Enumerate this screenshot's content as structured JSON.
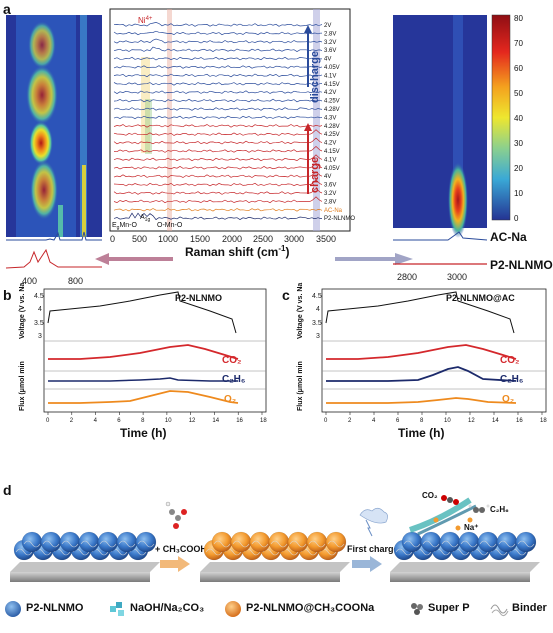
{
  "panel_a": {
    "label": "a",
    "center": {
      "xlabel": "Raman shift (cm",
      "xlabel_sup": "-1",
      "xlabel_tail": ")",
      "xticks": [
        "0",
        "500",
        "1000",
        "1500",
        "2000",
        "2500",
        "3000",
        "3500"
      ],
      "ni_label": "Ni",
      "ni_sup": "4+",
      "trace_labels": [
        "2V",
        "2.8V",
        "3.2V",
        "3.6V",
        "4V",
        "4.05V",
        "4.1V",
        "4.15V",
        "4.2V",
        "4.25V",
        "4.28V",
        "4.3V",
        "4.28V",
        "4.25V",
        "4.2V",
        "4.15V",
        "4.1V",
        "4.05V",
        "4V",
        "3.6V",
        "3.2V",
        "2.8V",
        "AC-Na",
        "P2-NLNMO"
      ],
      "bottom_ann": [
        "E",
        "g",
        "Mn-O",
        "A",
        "1g",
        "O-Mn-O"
      ],
      "discharge": "discharge",
      "charge": "charge",
      "colors": {
        "discharge": "#2a4b9b",
        "charge": "#c6262a",
        "acna": "#e07b1a",
        "ref": "#1c2a6b"
      }
    },
    "left": {
      "xticks": [
        "400",
        "800"
      ]
    },
    "right": {
      "xticks": [
        "2800",
        "3000"
      ],
      "ac_na": "AC-Na",
      "p2": "P2-NLNMO",
      "colorbar_ticks": [
        "80",
        "70",
        "60",
        "50",
        "40",
        "30",
        "20",
        "10",
        "0"
      ]
    }
  },
  "panel_b": {
    "label": "b",
    "title": "P2-NLNMO",
    "ylabel_top": "Voltage (V vs. Na",
    "ylabel_bottom": "Flux (μmol min",
    "xlabel": "Time (h)",
    "co2": "CO₂",
    "c2h6": "C₂H₆",
    "o2": "O₂",
    "xticks": [
      "0",
      "2",
      "4",
      "6",
      "8",
      "10",
      "12",
      "14",
      "16",
      "18"
    ],
    "vticks": [
      "4.5",
      "4",
      "3.5",
      "3"
    ]
  },
  "panel_c": {
    "label": "c",
    "title": "P2-NLNMO@AC",
    "ylabel_top": "Voltage (V vs. Na",
    "ylabel_bottom": "Flux (μmol min",
    "xlabel": "Time (h)",
    "co2": "CO₂",
    "c2h6": "C₂H₆",
    "o2": "O₂",
    "xticks": [
      "0",
      "2",
      "4",
      "6",
      "8",
      "10",
      "12",
      "14",
      "16",
      "18"
    ],
    "vticks": [
      "4.5",
      "4",
      "3.5",
      "3"
    ]
  },
  "panel_d": {
    "label": "d",
    "step1": "+ CH₃COOH",
    "step2": "First charge",
    "gases": {
      "co2": "CO₂",
      "c2h6": "C₂H₆",
      "na": "Na⁺"
    },
    "legend": [
      {
        "name": "P2-NLNMO",
        "color": "#3a78c9"
      },
      {
        "name": "NaOH/Na₂CO₃",
        "color": "#5ec7d6"
      },
      {
        "name": "P2-NLNMO@CH₃COONa",
        "color": "#f39a2e"
      },
      {
        "name": "Super P",
        "color": "#666666"
      },
      {
        "name": "Binder",
        "color": "#999999"
      }
    ]
  }
}
